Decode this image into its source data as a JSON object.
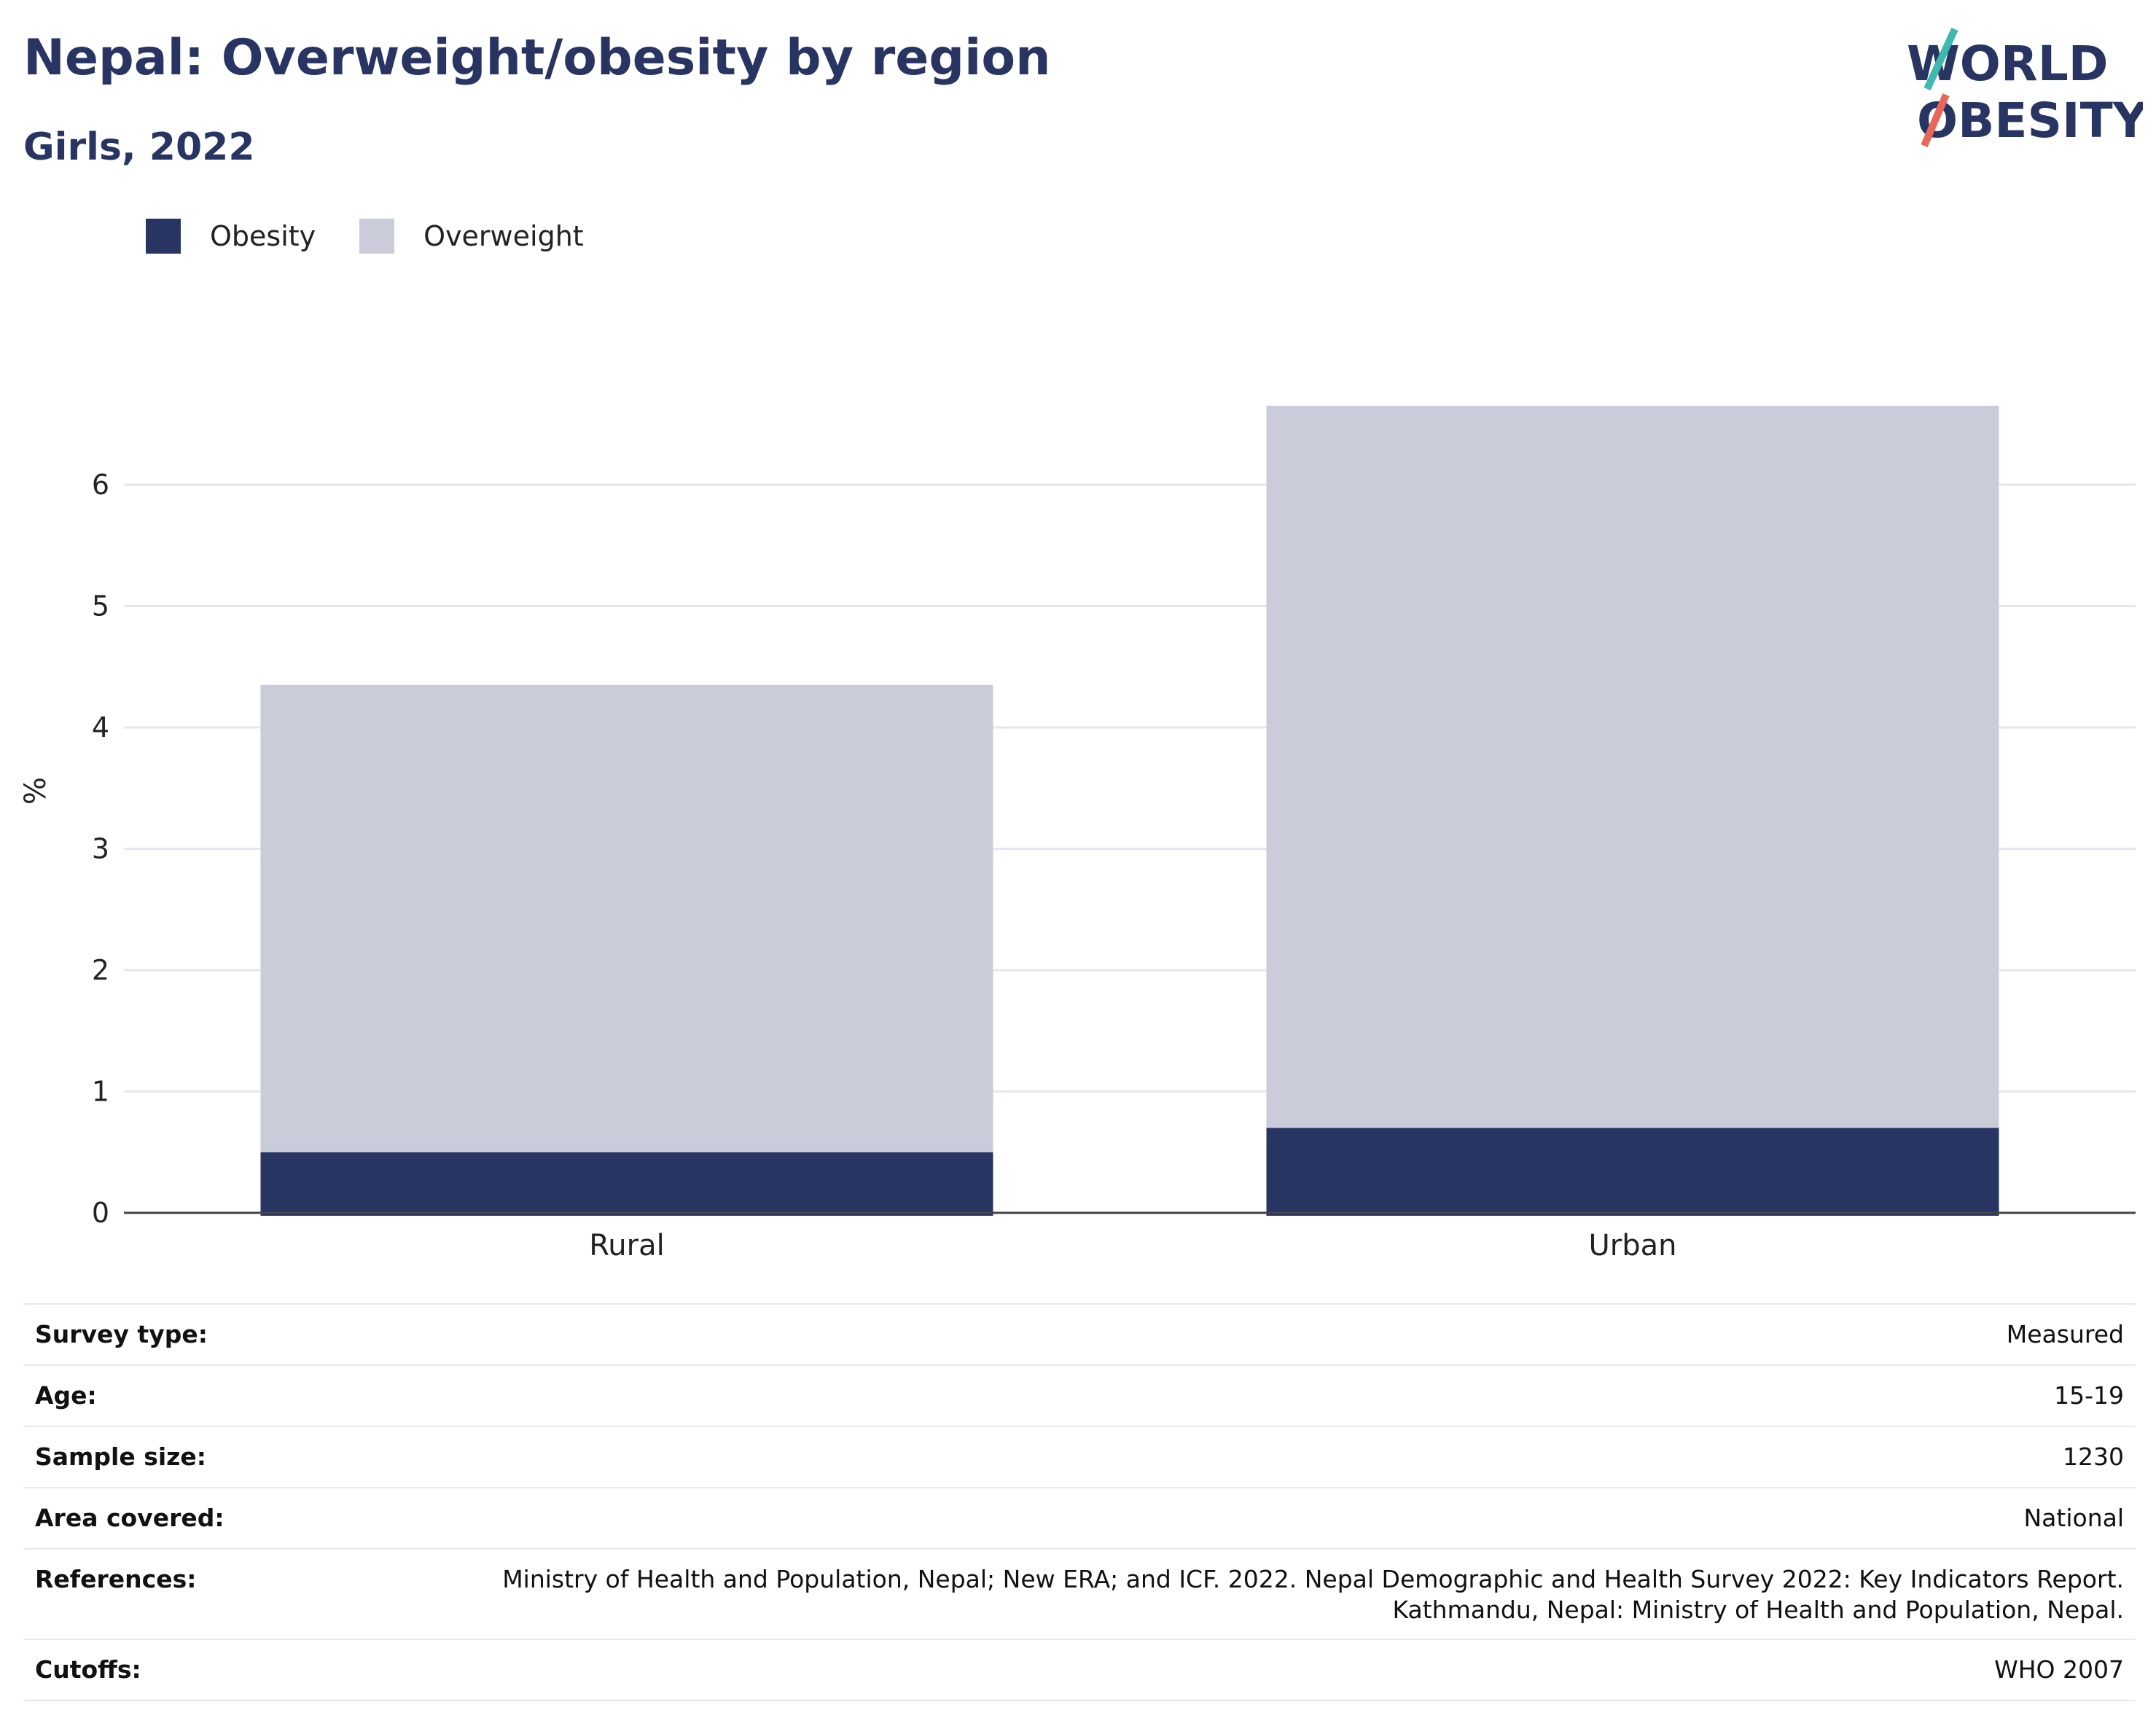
{
  "title": "Nepal: Overweight/obesity by region",
  "subtitle": "Girls, 2022",
  "logo": {
    "line1": "WORLD",
    "line2": "OBESITY",
    "accent_teal": "#3fb8b0",
    "accent_coral": "#e8675a"
  },
  "colors": {
    "obesity": "#283562",
    "overweight": "#cacdd9",
    "text": "#283562",
    "axis": "#444444",
    "grid": "#e6e7ee"
  },
  "chart_data": {
    "type": "bar",
    "stacked": true,
    "categories": [
      "Rural",
      "Urban"
    ],
    "series": [
      {
        "name": "Obesity",
        "values": [
          0.5,
          0.7
        ]
      },
      {
        "name": "Overweight",
        "values": [
          3.85,
          5.95
        ]
      }
    ],
    "ylabel": "%",
    "xlabel": "",
    "ylim": [
      0,
      7
    ],
    "yticks": [
      0,
      1,
      2,
      3,
      4,
      5,
      6
    ],
    "grid": true,
    "legend_position": "top-left"
  },
  "meta": {
    "survey_type_label": "Survey type:",
    "survey_type": "Measured",
    "age_label": "Age:",
    "age": "15-19",
    "sample_size_label": "Sample size:",
    "sample_size": "1230",
    "area_label": "Area covered:",
    "area": "National",
    "references_label": "References:",
    "references_line1": "Ministry of Health and Population, Nepal; New ERA; and ICF. 2022. Nepal Demographic and Health Survey 2022: Key Indicators Report.",
    "references_line2": "Kathmandu, Nepal: Ministry of Health and Population, Nepal.",
    "cutoffs_label": "Cutoffs:",
    "cutoffs": "WHO 2007"
  }
}
